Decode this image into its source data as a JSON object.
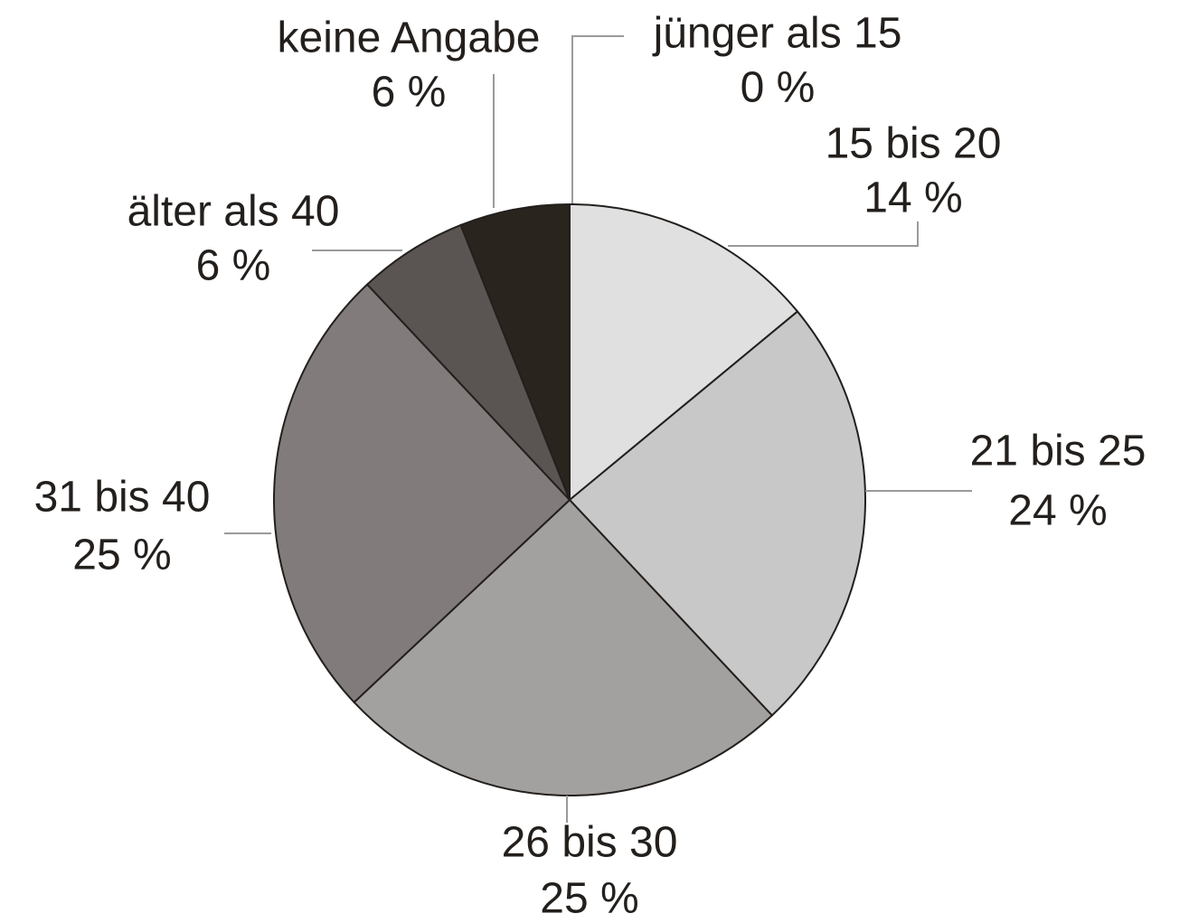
{
  "chart_data": {
    "type": "pie",
    "categories": [
      "jünger als 15",
      "15 bis 20",
      "21 bis 25",
      "26 bis 30",
      "31 bis 40",
      "älter als 40",
      "keine Angabe"
    ],
    "values": [
      0,
      14,
      24,
      25,
      25,
      6,
      6
    ],
    "value_labels": [
      "0 %",
      "14 %",
      "24 %",
      "25 %",
      "25 %",
      "6 %",
      "6 %"
    ],
    "colors": [
      "#f4f4f4",
      "#e0e0e0",
      "#c8c8c8",
      "#a3a1a0",
      "#817c7b",
      "#5a5453",
      "#2a241f"
    ]
  }
}
